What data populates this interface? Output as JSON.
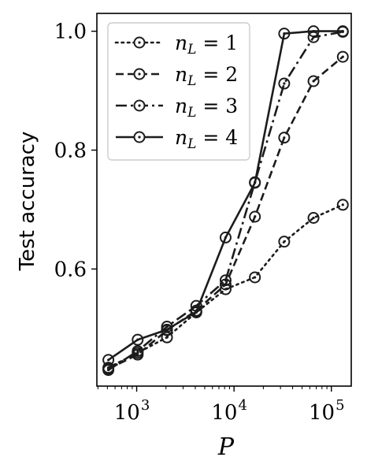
{
  "chart_data": {
    "type": "line",
    "xlabel": "P",
    "ylabel": "Test accuracy",
    "x_scale": "log",
    "xlim": [
      390,
      160000
    ],
    "ylim": [
      0.403,
      1.03
    ],
    "x_ticks": [
      1000,
      10000,
      100000
    ],
    "x_tick_labels": [
      {
        "base": "10",
        "exp": "3"
      },
      {
        "base": "10",
        "exp": "4"
      },
      {
        "base": "10",
        "exp": "5"
      }
    ],
    "y_ticks": [
      0.6,
      0.8,
      1.0
    ],
    "y_tick_labels": [
      "0.6",
      "0.8",
      "1.0"
    ],
    "grid": false,
    "legend_position": "upper-left",
    "x": [
      512,
      1024,
      2048,
      4096,
      8192,
      16384,
      32768,
      65536,
      131072
    ],
    "series": [
      {
        "name": "n_L = 1",
        "label_var": "n",
        "label_sub": "L",
        "label_val": "= 1",
        "dash": "dotted",
        "values": [
          0.434,
          0.459,
          0.485,
          0.527,
          0.566,
          0.586,
          0.646,
          0.686,
          0.708
        ]
      },
      {
        "name": "n_L = 2",
        "label_var": "n",
        "label_sub": "L",
        "label_val": "= 2",
        "dash": "dashed",
        "values": [
          0.432,
          0.456,
          0.497,
          0.53,
          0.574,
          0.688,
          0.821,
          0.916,
          0.957
        ]
      },
      {
        "name": "n_L = 3",
        "label_var": "n",
        "label_sub": "L",
        "label_val": "= 3",
        "dash": "dashdot",
        "values": [
          0.43,
          0.462,
          0.503,
          0.538,
          0.581,
          0.746,
          0.912,
          0.99,
          0.999
        ]
      },
      {
        "name": "n_L = 4",
        "label_var": "n",
        "label_sub": "L",
        "label_val": "= 4",
        "dash": "solid",
        "values": [
          0.447,
          0.481,
          0.498,
          0.528,
          0.653,
          0.745,
          0.996,
          1.0,
          1.0
        ]
      }
    ],
    "line_color": "#1c1c1c"
  }
}
